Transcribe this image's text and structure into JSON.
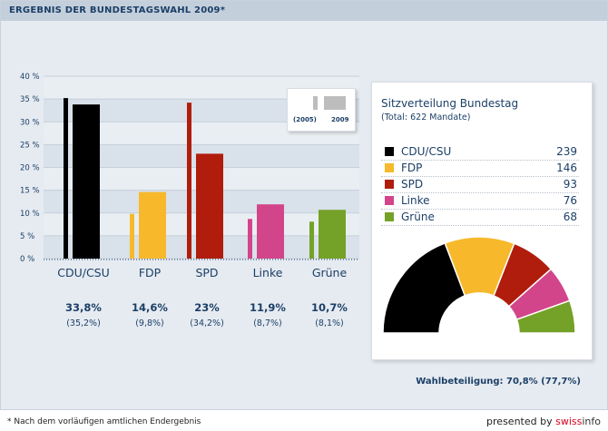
{
  "header": {
    "title": "ERGEBNIS DER BUNDESTAGSWAHL 2009*"
  },
  "chart_data": {
    "type": "bar",
    "ylim": [
      0,
      40
    ],
    "y_ticks": [
      "0 %",
      "5 %",
      "10 %",
      "15 %",
      "20 %",
      "25 %",
      "30 %",
      "35 %",
      "40 %"
    ],
    "categories": [
      "CDU/CSU",
      "FDP",
      "SPD",
      "Linke",
      "Grüne"
    ],
    "colors": [
      "#000000",
      "#f7b92b",
      "#b01d0d",
      "#d3458a",
      "#74a127"
    ],
    "series": [
      {
        "name": "2005",
        "values": [
          35.2,
          9.8,
          34.2,
          8.7,
          8.1
        ]
      },
      {
        "name": "2009",
        "values": [
          33.8,
          14.6,
          23,
          11.9,
          10.7
        ]
      }
    ],
    "value_labels_2009": [
      "33,8%",
      "14,6%",
      "23%",
      "11,9%",
      "10,7%"
    ],
    "value_labels_2005": [
      "(35,2%)",
      "(9,8%)",
      "(34,2%)",
      "(8,7%)",
      "(8,1%)"
    ],
    "grid": true
  },
  "legend": {
    "label_2005": "(2005)",
    "label_2009": "2009"
  },
  "seats": {
    "title": "Sitzverteilung Bundestag",
    "subtitle": "(Total: 622 Mandate)",
    "parties": [
      {
        "name": "CDU/CSU",
        "seats": "239",
        "color": "#000000"
      },
      {
        "name": "FDP",
        "seats": "146",
        "color": "#f7b92b"
      },
      {
        "name": "SPD",
        "seats": "93",
        "color": "#b01d0d"
      },
      {
        "name": "Linke",
        "seats": "76",
        "color": "#d3458a"
      },
      {
        "name": "Grüne",
        "seats": "68",
        "color": "#74a127"
      }
    ]
  },
  "footer": {
    "turnout": "Wahlbeteiligung: 70,8% (77,7%)",
    "footnote": "* Nach dem vorläufigen amtlichen Endergebnis",
    "presented_prefix": "presented by ",
    "brand_part1": "swiss",
    "brand_part2": "info"
  }
}
